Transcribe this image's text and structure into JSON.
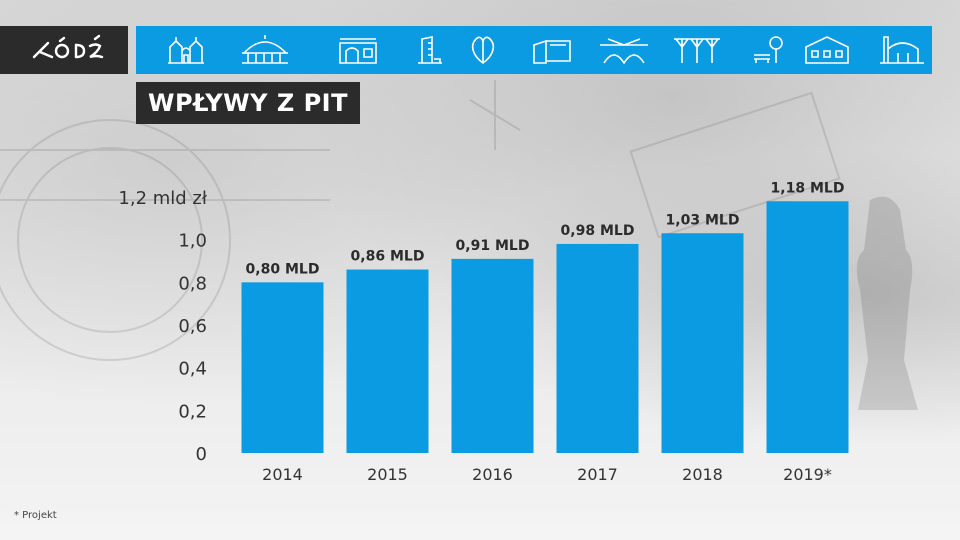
{
  "title": "WPŁYWY Z PIT",
  "footnote": "* Projekt",
  "logo_text": "ŁÓDŹ",
  "header_icons": [
    "city-gate-icon",
    "market-hall-icon",
    "palace-icon",
    "skyscraper-icon",
    "heart-tree-icon",
    "building-block-icon",
    "arch-bridge-icon",
    "tree-canopy-icon",
    "park-bench-icon",
    "manor-icon",
    "factory-icon"
  ],
  "colors": {
    "bar": "#0a9be3",
    "header": "#0a9be3",
    "dark_box": "#2b2b2b"
  },
  "chart_data": {
    "type": "bar",
    "title": "",
    "categories": [
      "2014",
      "2015",
      "2016",
      "2017",
      "2018",
      "2019*"
    ],
    "values": [
      0.8,
      0.86,
      0.91,
      0.98,
      1.03,
      1.18
    ],
    "data_labels": [
      "0,80 MLD",
      "0,86 MLD",
      "0,91 MLD",
      "0,98 MLD",
      "1,03 MLD",
      "1,18 MLD"
    ],
    "ylim": [
      0,
      1.2
    ],
    "yticks": [
      0,
      0.2,
      0.4,
      0.6,
      0.8,
      1.0,
      1.2
    ],
    "ytick_labels": [
      "0",
      "0,2",
      "0,4",
      "0,6",
      "0,8",
      "1,0",
      "1,2 mld zł"
    ],
    "xlabel": "",
    "ylabel": "",
    "grid": false,
    "legend": "none"
  }
}
